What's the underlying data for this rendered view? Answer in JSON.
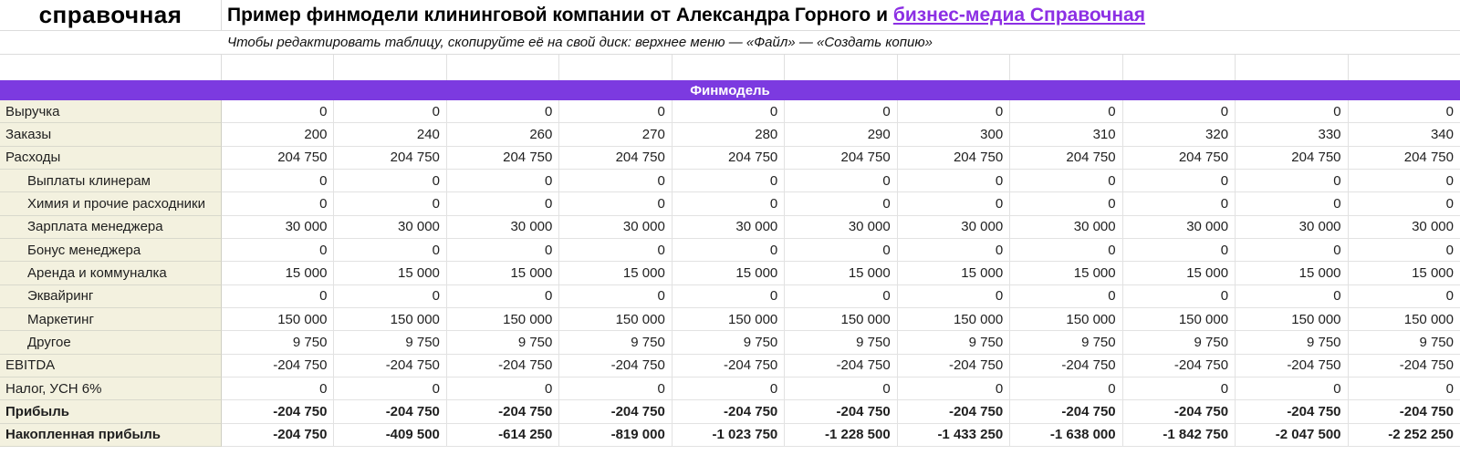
{
  "brand": {
    "logo_text": "справочная"
  },
  "header": {
    "title_prefix": "Пример финмодели клининговой компании от Александра Горного и ",
    "title_link": "бизнес-медиа Справочная",
    "subtitle": "Чтобы редактировать таблицу, скопируйте её на свой диск: верхнее меню — «Файл» — «Создать копию»"
  },
  "colors": {
    "section_band_bg": "#7c3ae0",
    "link_purple": "#8c2fe4",
    "label_column_bg": "#f3f1df",
    "gridline": "#e2e2e2"
  },
  "table": {
    "section_title": "Финмодель",
    "column_count": 11,
    "rows": [
      {
        "label": "Выручка",
        "indent": false,
        "bold": false,
        "values": [
          "0",
          "0",
          "0",
          "0",
          "0",
          "0",
          "0",
          "0",
          "0",
          "0",
          "0"
        ]
      },
      {
        "label": "Заказы",
        "indent": false,
        "bold": false,
        "values": [
          "200",
          "240",
          "260",
          "270",
          "280",
          "290",
          "300",
          "310",
          "320",
          "330",
          "340"
        ]
      },
      {
        "label": "Расходы",
        "indent": false,
        "bold": false,
        "values": [
          "204 750",
          "204 750",
          "204 750",
          "204 750",
          "204 750",
          "204 750",
          "204 750",
          "204 750",
          "204 750",
          "204 750",
          "204 750"
        ]
      },
      {
        "label": "Выплаты клинерам",
        "indent": true,
        "bold": false,
        "values": [
          "0",
          "0",
          "0",
          "0",
          "0",
          "0",
          "0",
          "0",
          "0",
          "0",
          "0"
        ]
      },
      {
        "label": "Химия и прочие расходники",
        "indent": true,
        "bold": false,
        "values": [
          "0",
          "0",
          "0",
          "0",
          "0",
          "0",
          "0",
          "0",
          "0",
          "0",
          "0"
        ]
      },
      {
        "label": "Зарплата менеджера",
        "indent": true,
        "bold": false,
        "values": [
          "30 000",
          "30 000",
          "30 000",
          "30 000",
          "30 000",
          "30 000",
          "30 000",
          "30 000",
          "30 000",
          "30 000",
          "30 000"
        ]
      },
      {
        "label": "Бонус менеджера",
        "indent": true,
        "bold": false,
        "values": [
          "0",
          "0",
          "0",
          "0",
          "0",
          "0",
          "0",
          "0",
          "0",
          "0",
          "0"
        ]
      },
      {
        "label": "Аренда и коммуналка",
        "indent": true,
        "bold": false,
        "values": [
          "15 000",
          "15 000",
          "15 000",
          "15 000",
          "15 000",
          "15 000",
          "15 000",
          "15 000",
          "15 000",
          "15 000",
          "15 000"
        ]
      },
      {
        "label": "Эквайринг",
        "indent": true,
        "bold": false,
        "values": [
          "0",
          "0",
          "0",
          "0",
          "0",
          "0",
          "0",
          "0",
          "0",
          "0",
          "0"
        ]
      },
      {
        "label": "Маркетинг",
        "indent": true,
        "bold": false,
        "values": [
          "150 000",
          "150 000",
          "150 000",
          "150 000",
          "150 000",
          "150 000",
          "150 000",
          "150 000",
          "150 000",
          "150 000",
          "150 000"
        ]
      },
      {
        "label": "Другое",
        "indent": true,
        "bold": false,
        "values": [
          "9 750",
          "9 750",
          "9 750",
          "9 750",
          "9 750",
          "9 750",
          "9 750",
          "9 750",
          "9 750",
          "9 750",
          "9 750"
        ]
      },
      {
        "label": "EBITDA",
        "indent": false,
        "bold": false,
        "values": [
          "-204 750",
          "-204 750",
          "-204 750",
          "-204 750",
          "-204 750",
          "-204 750",
          "-204 750",
          "-204 750",
          "-204 750",
          "-204 750",
          "-204 750"
        ]
      },
      {
        "label": "Налог, УСН 6%",
        "indent": false,
        "bold": false,
        "values": [
          "0",
          "0",
          "0",
          "0",
          "0",
          "0",
          "0",
          "0",
          "0",
          "0",
          "0"
        ]
      },
      {
        "label": "Прибыль",
        "indent": false,
        "bold": true,
        "values": [
          "-204 750",
          "-204 750",
          "-204 750",
          "-204 750",
          "-204 750",
          "-204 750",
          "-204 750",
          "-204 750",
          "-204 750",
          "-204 750",
          "-204 750"
        ]
      },
      {
        "label": "Накопленная прибыль",
        "indent": false,
        "bold": true,
        "values": [
          "-204 750",
          "-409 500",
          "-614 250",
          "-819 000",
          "-1 023 750",
          "-1 228 500",
          "-1 433 250",
          "-1 638 000",
          "-1 842 750",
          "-2 047 500",
          "-2 252 250"
        ]
      }
    ]
  }
}
